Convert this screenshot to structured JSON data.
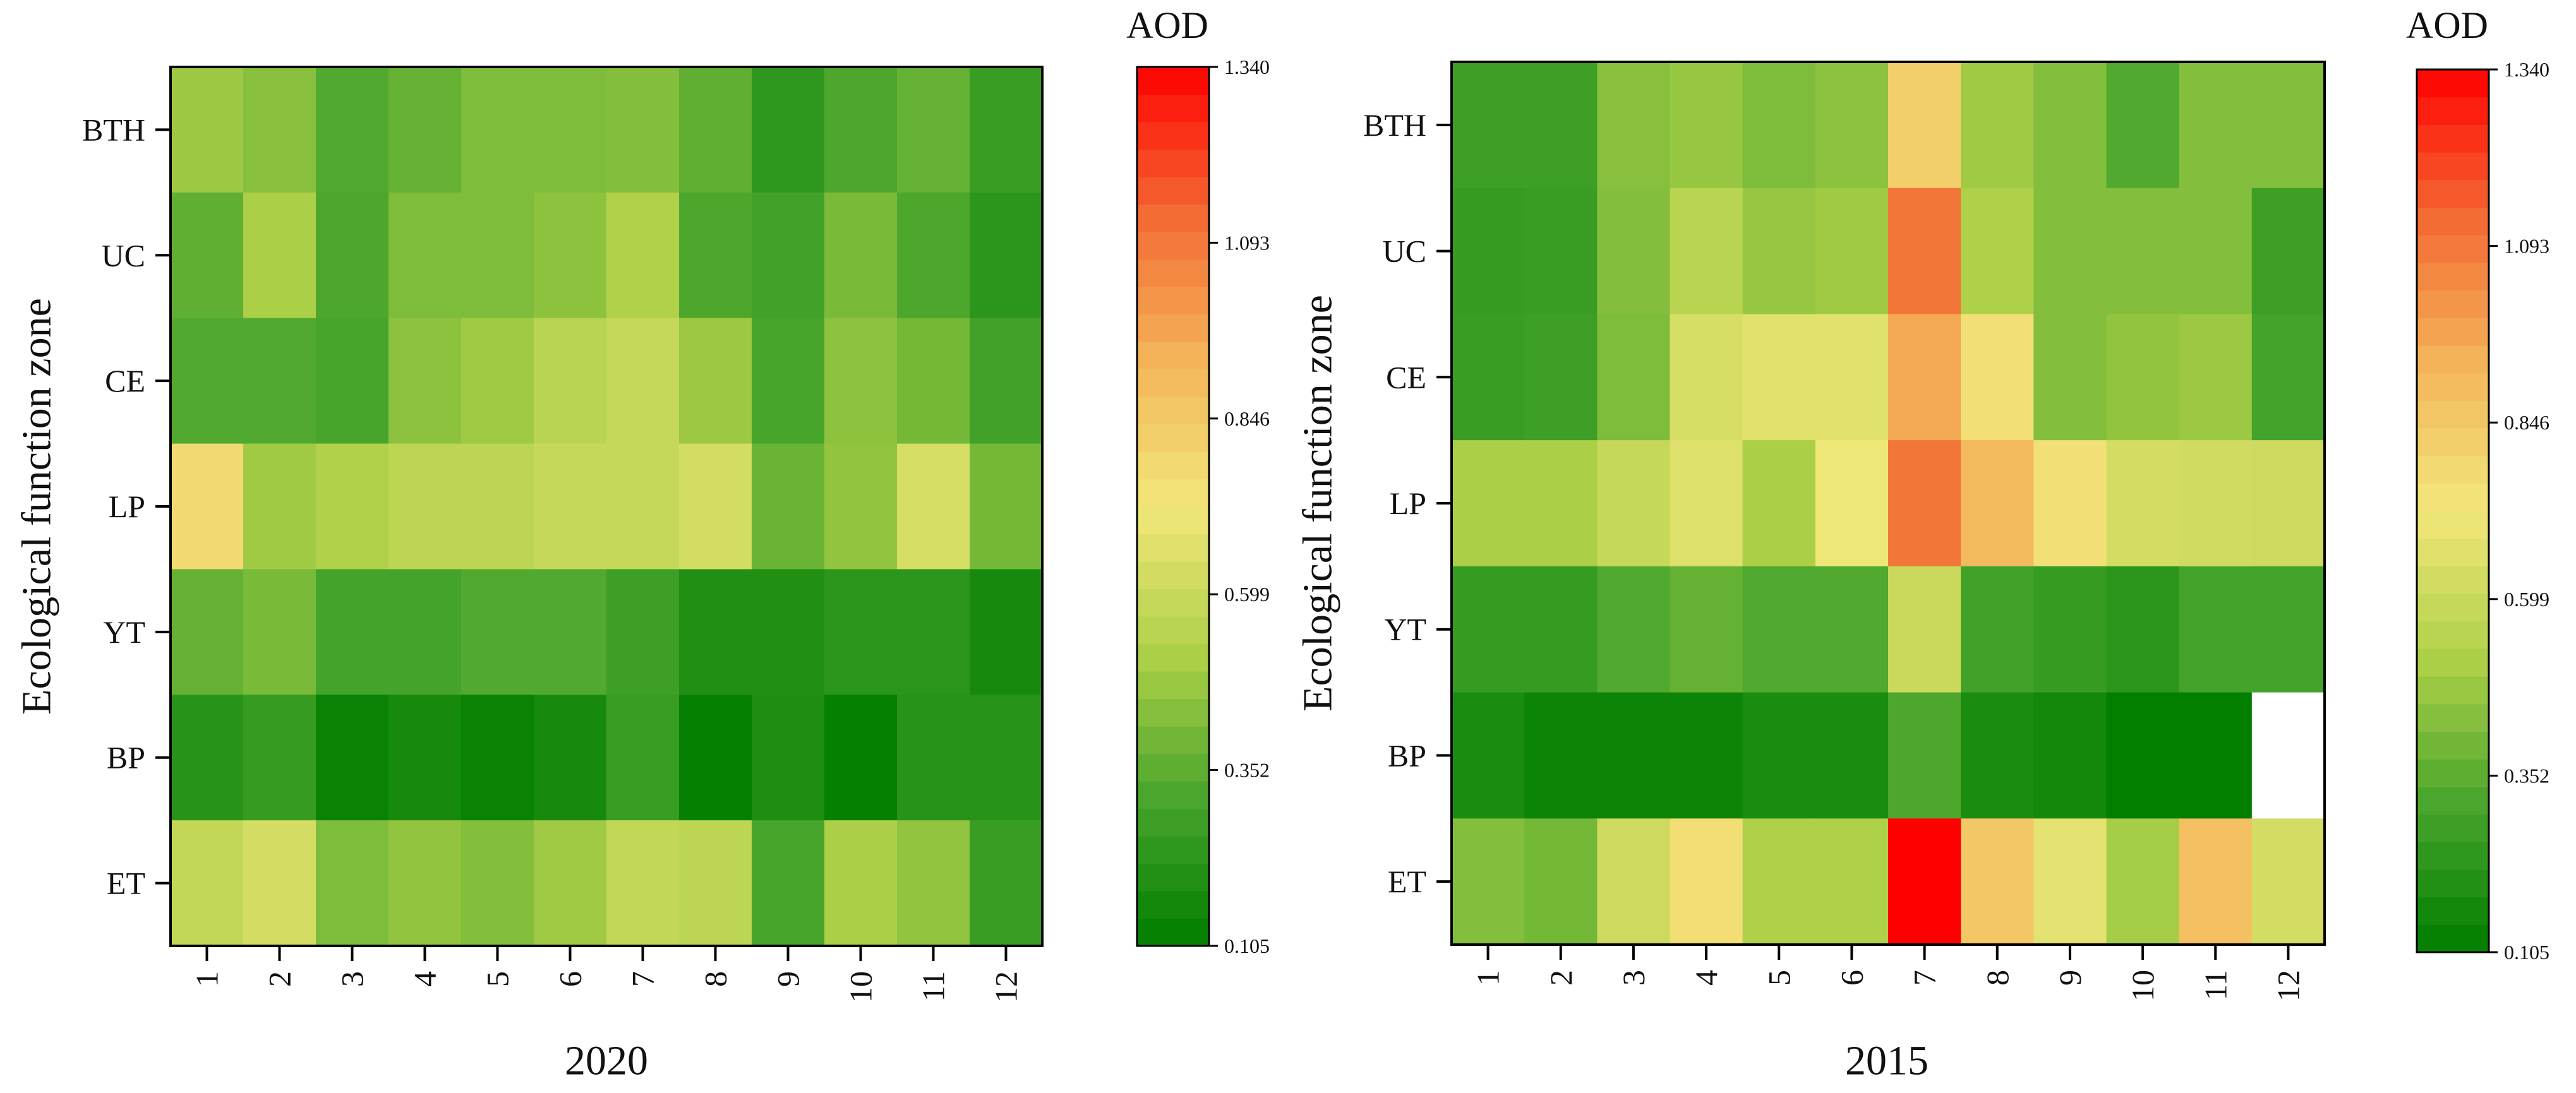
{
  "chart_data": [
    {
      "type": "heatmap",
      "title": "2020",
      "ylabel": "Ecological function zone",
      "rows": [
        "BTH",
        "UC",
        "CE",
        "LP",
        "YT",
        "BP",
        "ET"
      ],
      "cols": [
        "1",
        "2",
        "3",
        "4",
        "5",
        "6",
        "7",
        "8",
        "9",
        "10",
        "11",
        "12"
      ],
      "values": [
        [
          0.48,
          0.44,
          0.33,
          0.37,
          0.42,
          0.42,
          0.43,
          0.36,
          0.24,
          0.32,
          0.37,
          0.27
        ],
        [
          0.36,
          0.51,
          0.32,
          0.42,
          0.42,
          0.45,
          0.53,
          0.32,
          0.29,
          0.41,
          0.32,
          0.23
        ],
        [
          0.33,
          0.33,
          0.31,
          0.45,
          0.49,
          0.55,
          0.59,
          0.48,
          0.31,
          0.45,
          0.4,
          0.29
        ],
        [
          0.78,
          0.49,
          0.53,
          0.56,
          0.56,
          0.59,
          0.59,
          0.63,
          0.38,
          0.46,
          0.64,
          0.4
        ],
        [
          0.37,
          0.41,
          0.3,
          0.3,
          0.33,
          0.33,
          0.28,
          0.2,
          0.2,
          0.23,
          0.23,
          0.17
        ],
        [
          0.22,
          0.26,
          0.13,
          0.17,
          0.13,
          0.17,
          0.27,
          0.12,
          0.19,
          0.12,
          0.22,
          0.22
        ],
        [
          0.58,
          0.63,
          0.42,
          0.46,
          0.43,
          0.49,
          0.58,
          0.56,
          0.31,
          0.51,
          0.46,
          0.27
        ]
      ],
      "colorbar": {
        "label": "AOD",
        "min": 0.105,
        "max": 1.34,
        "ticks": [
          "0.105",
          "0.352",
          "0.599",
          "0.846",
          "1.093",
          "1.340"
        ]
      }
    },
    {
      "type": "heatmap",
      "title": "2015",
      "ylabel": "Ecological function zone",
      "rows": [
        "BTH",
        "UC",
        "CE",
        "LP",
        "YT",
        "BP",
        "ET"
      ],
      "cols": [
        "1",
        "2",
        "3",
        "4",
        "5",
        "6",
        "7",
        "8",
        "9",
        "10",
        "11",
        "12"
      ],
      "values": [
        [
          0.28,
          0.28,
          0.44,
          0.47,
          0.42,
          0.45,
          0.82,
          0.49,
          0.43,
          0.33,
          0.43,
          0.43
        ],
        [
          0.26,
          0.27,
          0.43,
          0.55,
          0.47,
          0.49,
          1.1,
          0.52,
          0.43,
          0.43,
          0.43,
          0.28
        ],
        [
          0.27,
          0.28,
          0.42,
          0.64,
          0.67,
          0.67,
          0.96,
          0.75,
          0.43,
          0.46,
          0.48,
          0.3
        ],
        [
          0.51,
          0.51,
          0.59,
          0.66,
          0.51,
          0.71,
          1.1,
          0.9,
          0.75,
          0.63,
          0.62,
          0.61
        ],
        [
          0.26,
          0.26,
          0.33,
          0.37,
          0.33,
          0.33,
          0.6,
          0.29,
          0.26,
          0.23,
          0.3,
          0.3
        ],
        [
          0.18,
          0.14,
          0.14,
          0.14,
          0.18,
          0.18,
          0.32,
          0.18,
          0.16,
          0.11,
          0.11,
          null
        ],
        [
          0.43,
          0.4,
          0.61,
          0.76,
          0.52,
          0.52,
          1.34,
          0.85,
          0.68,
          0.5,
          0.88,
          0.63
        ]
      ],
      "colorbar": {
        "label": "AOD",
        "min": 0.105,
        "max": 1.34,
        "ticks": [
          "0.105",
          "0.352",
          "0.599",
          "0.846",
          "1.093",
          "1.340"
        ]
      }
    }
  ],
  "colorscale": {
    "stops": [
      "#007d00",
      "#48a52c",
      "#aed048",
      "#f2e77a",
      "#f4b45a",
      "#f36a33",
      "#ff0000"
    ]
  }
}
